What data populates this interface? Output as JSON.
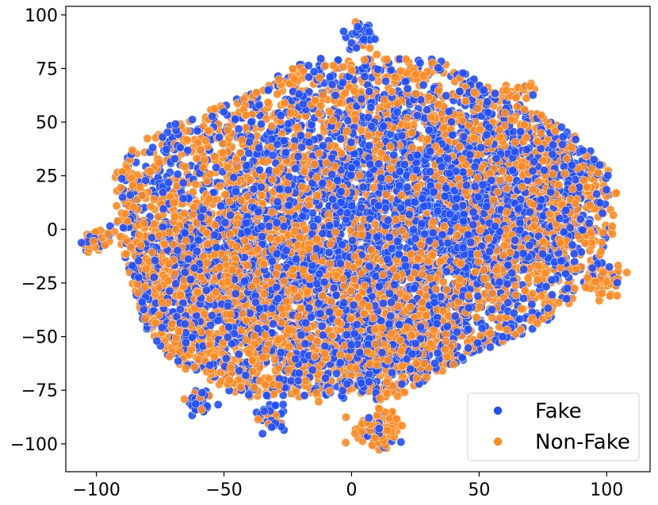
{
  "chart_data": {
    "type": "scatter",
    "title": "",
    "xlabel": "",
    "ylabel": "",
    "xlim": [
      -112,
      117
    ],
    "ylim": [
      -113,
      104
    ],
    "x_ticks": [
      -100,
      -50,
      0,
      50,
      100
    ],
    "y_ticks": [
      -100,
      -75,
      -50,
      -25,
      0,
      25,
      50,
      75,
      100
    ],
    "x_tick_labels": [
      "−100",
      "−50",
      "0",
      "50",
      "100"
    ],
    "y_tick_labels": [
      "−100",
      "−75",
      "−50",
      "−25",
      "0",
      "25",
      "50",
      "75",
      "100"
    ],
    "grid": false,
    "legend_position": "bottom-right",
    "series": [
      {
        "name": "Fake",
        "color": "#1f4fff"
      },
      {
        "name": "Non-Fake",
        "color": "#ff8a1f"
      }
    ],
    "regions": [
      {
        "x": 15,
        "y": 20,
        "sx": 38,
        "sy": 30,
        "w": 0.6
      },
      {
        "x": -15,
        "y": -30,
        "sx": 30,
        "sy": 22,
        "w": 0.6
      },
      {
        "x": 60,
        "y": 15,
        "sx": 20,
        "sy": 25,
        "w": 0.5
      },
      {
        "x": -60,
        "y": -20,
        "sx": 20,
        "sy": 20,
        "w": 0.5
      },
      {
        "x": 20,
        "y": -50,
        "sx": 18,
        "sy": 15,
        "w": 0.3
      }
    ],
    "outlier_clusters": [
      {
        "x": 3,
        "y": 90,
        "r": 3,
        "n": 40,
        "fake_ratio": 0.9
      },
      {
        "x": -60,
        "y": -80,
        "r": 2.5,
        "n": 40,
        "fake_ratio": 0.9
      },
      {
        "x": 10,
        "y": -93,
        "r": 4.5,
        "n": 110,
        "fake_ratio": 0.2
      },
      {
        "x": -32,
        "y": -88,
        "r": 3,
        "n": 40,
        "fake_ratio": 0.5
      },
      {
        "x": 65,
        "y": 65,
        "r": 3,
        "n": 30,
        "fake_ratio": 0.3
      },
      {
        "x": -100,
        "y": -5,
        "r": 3,
        "n": 40,
        "fake_ratio": 0.5
      },
      {
        "x": 100,
        "y": -25,
        "r": 4,
        "n": 60,
        "fake_ratio": 0.2
      }
    ],
    "point_count_per_series": 4500
  }
}
